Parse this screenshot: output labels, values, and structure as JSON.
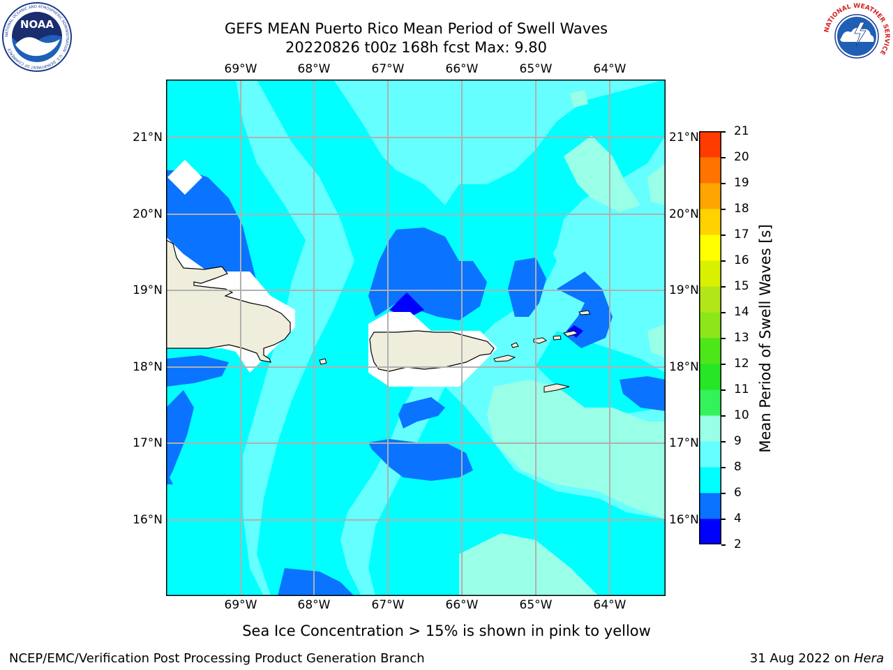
{
  "title": {
    "line1": "GEFS MEAN Puerto Rico Mean Period of Swell Waves",
    "line2": "20220826 t00z 168h fcst   Max: 9.80"
  },
  "axes": {
    "lon_labels": [
      "69°W",
      "68°W",
      "67°W",
      "66°W",
      "65°W",
      "64°W"
    ],
    "lat_labels": [
      "21°N",
      "20°N",
      "19°N",
      "18°N",
      "17°N",
      "16°N"
    ],
    "lon_range": [
      -70.0,
      -63.3
    ],
    "lat_range": [
      15.0,
      21.75
    ],
    "grid": true
  },
  "colorbar": {
    "label": "Mean Period of Swell Waves [s]",
    "ticks": [
      "2",
      "4",
      "6",
      "8",
      "9",
      "10",
      "11",
      "12",
      "13",
      "14",
      "15",
      "16",
      "17",
      "18",
      "19",
      "20",
      "21"
    ],
    "colors": [
      "#0000ff",
      "#0a73ff",
      "#00ffff",
      "#66ffff",
      "#99ffe6",
      "#33f25a",
      "#26e626",
      "#4de619",
      "#8ce619",
      "#b3e619",
      "#d9f000",
      "#ffff00",
      "#ffd200",
      "#ffa500",
      "#ff7300",
      "#ff3c00",
      "#ff0000"
    ]
  },
  "footnote": "Sea Ice Concentration > 15% is shown in pink to yellow",
  "footer": {
    "left": "NCEP/EMC/Verification Post Processing Product Generation Branch",
    "date": "31 Aug 2022 on ",
    "machine": "Hera"
  },
  "logos": {
    "noaa_text": "NOAA",
    "noaa_ring_text": "NATIONAL OCEANIC AND ATMOSPHERIC ADMINISTRATION · U.S. DEPARTMENT OF COMMERCE",
    "nws_ring_text": "NATIONAL WEATHER SERVICE"
  },
  "colors": {
    "land": "#efeedc",
    "mask": "#ffffff",
    "grid": "#b0b0b0",
    "level_4_6": "#0a73ff",
    "level_2_4": "#0000ff",
    "level_6_8": "#00ffff",
    "level_8_9": "#66ffff",
    "level_9_10": "#99ffe6"
  }
}
